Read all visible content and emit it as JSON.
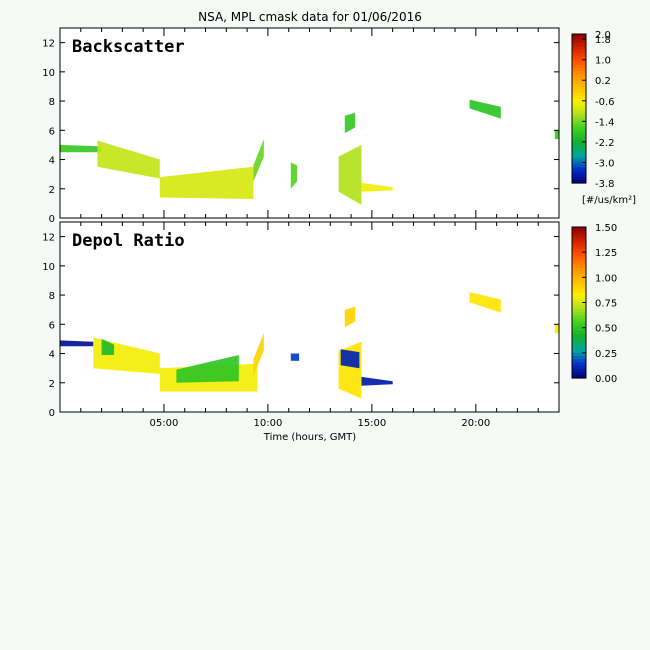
{
  "chart_data": [
    {
      "type": "heatmap",
      "title": "NSA, MPL cmask data for 01/06/2016",
      "panel_label": "Backscatter",
      "xlim": [
        0,
        24
      ],
      "ylim": [
        0,
        13
      ],
      "yticks": [
        "0",
        "2",
        "4",
        "6",
        "8",
        "10",
        "12"
      ],
      "colorbar": {
        "range": [
          -3.8,
          2.0
        ],
        "ticks": [
          "2.0",
          "1.8",
          "1.0",
          "0.2",
          "-0.6",
          "-1.4",
          "-2.2",
          "-3.0",
          "-3.8"
        ],
        "unit": "[#/us/km²]"
      },
      "regions": [
        {
          "x": [
            0.0,
            2.0
          ],
          "y_bottom": [
            4.5,
            4.5
          ],
          "y_top": [
            5.0,
            4.9
          ],
          "level": -1.8
        },
        {
          "x": [
            1.8,
            4.8
          ],
          "y_bottom": [
            3.5,
            2.7
          ],
          "y_top": [
            5.3,
            4.0
          ],
          "level": -1.0
        },
        {
          "x": [
            4.8,
            9.3
          ],
          "y_bottom": [
            1.4,
            1.3
          ],
          "y_top": [
            2.8,
            3.5
          ],
          "level": -0.9
        },
        {
          "x": [
            9.3,
            9.8
          ],
          "y_bottom": [
            2.5,
            4.2
          ],
          "y_top": [
            3.6,
            5.4
          ],
          "level": -1.5
        },
        {
          "x": [
            11.1,
            11.4
          ],
          "y_bottom": [
            2.0,
            2.5
          ],
          "y_top": [
            3.8,
            3.6
          ],
          "level": -1.6
        },
        {
          "x": [
            13.4,
            14.5
          ],
          "y_bottom": [
            1.8,
            0.9
          ],
          "y_top": [
            4.2,
            5.0
          ],
          "level": -1.1
        },
        {
          "x": [
            13.7,
            14.2
          ],
          "y_bottom": [
            5.8,
            6.2
          ],
          "y_top": [
            7.0,
            7.2
          ],
          "level": -1.8
        },
        {
          "x": [
            14.5,
            16.0
          ],
          "y_bottom": [
            1.8,
            1.9
          ],
          "y_top": [
            2.4,
            2.1
          ],
          "level": -0.7
        },
        {
          "x": [
            19.7,
            21.2
          ],
          "y_bottom": [
            7.5,
            6.8
          ],
          "y_top": [
            8.1,
            7.6
          ],
          "level": -1.9
        },
        {
          "x": [
            23.8,
            24.0
          ],
          "y_bottom": [
            5.4,
            5.4
          ],
          "y_top": [
            6.0,
            6.0
          ],
          "level": -1.8
        }
      ]
    },
    {
      "type": "heatmap",
      "panel_label": "Depol Ratio",
      "xlim": [
        0,
        24
      ],
      "ylim": [
        0,
        13
      ],
      "yticks": [
        "0",
        "2",
        "4",
        "6",
        "8",
        "10",
        "12"
      ],
      "xticks": [
        {
          "value": 5,
          "label": "05:00"
        },
        {
          "value": 10,
          "label": "10:00"
        },
        {
          "value": 15,
          "label": "15:00"
        },
        {
          "value": 20,
          "label": "20:00"
        }
      ],
      "xlabel": "Time (hours, GMT)",
      "colorbar": {
        "range": [
          0.0,
          1.5
        ],
        "ticks": [
          "1.50",
          "1.25",
          "1.00",
          "0.75",
          "0.50",
          "0.25",
          "0.00"
        ]
      },
      "regions": [
        {
          "x": [
            0.0,
            1.6
          ],
          "y_bottom": [
            4.5,
            4.5
          ],
          "y_top": [
            4.9,
            4.8
          ],
          "level": 0.05
        },
        {
          "x": [
            1.6,
            4.8
          ],
          "y_bottom": [
            3.0,
            2.6
          ],
          "y_top": [
            5.1,
            4.0
          ],
          "level": 0.8
        },
        {
          "x": [
            2.0,
            2.6
          ],
          "y_bottom": [
            3.9,
            3.9
          ],
          "y_top": [
            5.0,
            4.6
          ],
          "level": 0.45
        },
        {
          "x": [
            4.8,
            9.5
          ],
          "y_bottom": [
            1.4,
            1.4
          ],
          "y_top": [
            3.0,
            3.3
          ],
          "level": 0.8
        },
        {
          "x": [
            5.6,
            8.6
          ],
          "y_bottom": [
            2.0,
            2.1
          ],
          "y_top": [
            2.9,
            3.9
          ],
          "level": 0.5
        },
        {
          "x": [
            9.3,
            9.8
          ],
          "y_bottom": [
            2.5,
            4.2
          ],
          "y_top": [
            3.6,
            5.4
          ],
          "level": 0.9
        },
        {
          "x": [
            11.1,
            11.5
          ],
          "y_bottom": [
            3.5,
            3.5
          ],
          "y_top": [
            4.0,
            4.0
          ],
          "level": 0.15
        },
        {
          "x": [
            13.4,
            14.5
          ],
          "y_bottom": [
            1.6,
            0.9
          ],
          "y_top": [
            4.2,
            4.8
          ],
          "level": 0.85
        },
        {
          "x": [
            13.5,
            14.4
          ],
          "y_bottom": [
            3.2,
            3.0
          ],
          "y_top": [
            4.3,
            4.1
          ],
          "level": 0.1
        },
        {
          "x": [
            14.5,
            16.0
          ],
          "y_bottom": [
            1.8,
            1.9
          ],
          "y_top": [
            2.4,
            2.1
          ],
          "level": 0.08
        },
        {
          "x": [
            13.7,
            14.2
          ],
          "y_bottom": [
            5.8,
            6.2
          ],
          "y_top": [
            7.0,
            7.2
          ],
          "level": 0.9
        },
        {
          "x": [
            19.7,
            21.2
          ],
          "y_bottom": [
            7.5,
            6.8
          ],
          "y_top": [
            8.2,
            7.7
          ],
          "level": 0.85
        },
        {
          "x": [
            23.8,
            24.0
          ],
          "y_bottom": [
            5.4,
            5.4
          ],
          "y_top": [
            6.0,
            6.0
          ],
          "level": 0.8
        }
      ]
    }
  ]
}
